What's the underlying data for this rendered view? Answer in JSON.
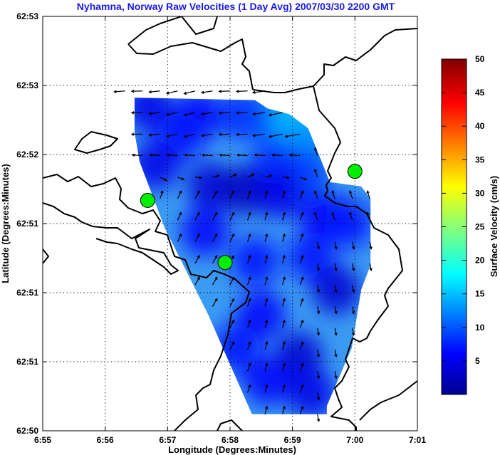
{
  "chart_data": {
    "type": "vector-map",
    "title": "Nyhamna, Norway Raw Velocities (1 Day Avg) 2007/03/30 2200 GMT",
    "xlabel": "Longitude (Degrees:Minutes)",
    "ylabel": "Latitude (Degrees:Minutes)",
    "x_ticks": [
      "6:55",
      "6:56",
      "6:57",
      "6:58",
      "6:59",
      "7:00",
      "7:01"
    ],
    "y_ticks": [
      "62:53",
      "62:53",
      "62:52",
      "62:51",
      "62:51",
      "62:51",
      "62:50"
    ],
    "x_range_minutes": [
      0,
      6
    ],
    "y_range_units": [
      0,
      5
    ],
    "grid": true,
    "colorbar": {
      "label": "Surface Velocity (cm/s)",
      "min": 0,
      "max": 50,
      "ticks": [
        "50",
        "45",
        "40",
        "35",
        "30",
        "25",
        "20",
        "15",
        "10",
        "5"
      ],
      "colormap": "jet"
    },
    "stations": [
      {
        "x": 1.68,
        "y": 2.78
      },
      {
        "x": 2.92,
        "y": 2.03
      },
      {
        "x": 5.0,
        "y": 3.13
      }
    ],
    "coverage_polygon": [
      [
        1.47,
        4.02
      ],
      [
        3.4,
        3.99
      ],
      [
        3.6,
        3.89
      ],
      [
        3.95,
        3.82
      ],
      [
        4.25,
        3.65
      ],
      [
        4.6,
        3.0
      ],
      [
        5.1,
        2.95
      ],
      [
        5.25,
        2.8
      ],
      [
        5.25,
        2.0
      ],
      [
        5.1,
        1.7
      ],
      [
        4.95,
        1.0
      ],
      [
        4.55,
        0.3
      ],
      [
        4.55,
        0.2
      ],
      [
        3.35,
        0.2
      ],
      [
        2.65,
        1.4
      ],
      [
        2.25,
        2.0
      ],
      [
        1.95,
        2.45
      ],
      [
        1.55,
        3.25
      ],
      [
        1.47,
        3.6
      ]
    ],
    "speed_field": [
      {
        "x": 1.7,
        "y": 3.9,
        "speed": 5
      },
      {
        "x": 2.5,
        "y": 3.8,
        "speed": 6
      },
      {
        "x": 3.2,
        "y": 3.8,
        "speed": 8
      },
      {
        "x": 3.7,
        "y": 3.7,
        "speed": 10
      },
      {
        "x": 4.05,
        "y": 3.75,
        "speed": 16
      },
      {
        "x": 4.2,
        "y": 3.45,
        "speed": 13
      },
      {
        "x": 4.2,
        "y": 3.1,
        "speed": 9
      },
      {
        "x": 3.7,
        "y": 3.2,
        "speed": 8
      },
      {
        "x": 2.2,
        "y": 3.55,
        "speed": 7
      },
      {
        "x": 1.8,
        "y": 3.2,
        "speed": 5
      },
      {
        "x": 2.7,
        "y": 2.95,
        "speed": 4
      },
      {
        "x": 3.25,
        "y": 2.9,
        "speed": 3
      },
      {
        "x": 3.8,
        "y": 2.85,
        "speed": 5
      },
      {
        "x": 4.5,
        "y": 2.6,
        "speed": 6
      },
      {
        "x": 4.9,
        "y": 2.5,
        "speed": 7
      },
      {
        "x": 4.3,
        "y": 2.1,
        "speed": 7
      },
      {
        "x": 3.4,
        "y": 2.05,
        "speed": 7
      },
      {
        "x": 2.6,
        "y": 2.4,
        "speed": 6
      },
      {
        "x": 4.7,
        "y": 1.7,
        "speed": 4
      },
      {
        "x": 3.5,
        "y": 1.4,
        "speed": 6
      },
      {
        "x": 4.1,
        "y": 0.9,
        "speed": 4
      },
      {
        "x": 3.6,
        "y": 0.6,
        "speed": 6
      },
      {
        "x": 4.3,
        "y": 0.45,
        "speed": 5
      },
      {
        "x": 3.1,
        "y": 1.0,
        "speed": 7
      }
    ]
  }
}
